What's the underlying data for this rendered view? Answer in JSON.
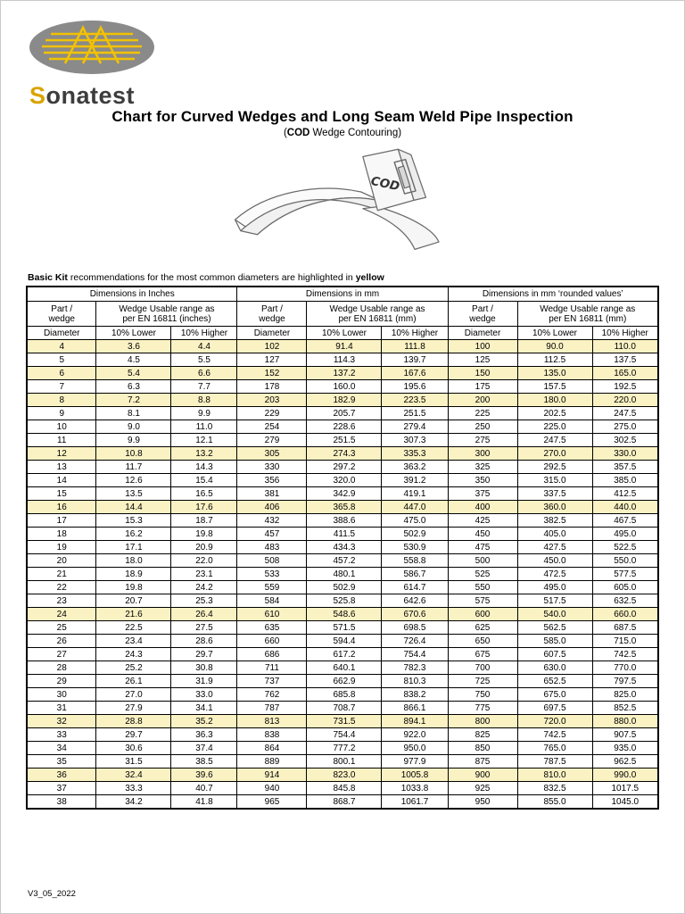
{
  "logo": {
    "brand_initial": "S",
    "brand_rest": "onatest"
  },
  "header": {
    "title": "Chart for Curved Wedges and Long Seam Weld Pipe Inspection",
    "subtitle_open": "(",
    "subtitle_bold": "COD",
    "subtitle_rest": " Wedge Contouring)"
  },
  "illustration": {
    "label": "COD"
  },
  "note": {
    "bold1": "Basic Kit",
    "text1": " recommendations for the most common diameters are highlighted in ",
    "bold2": "yellow"
  },
  "table": {
    "highlight_color": "#fbf2c4",
    "groups": [
      {
        "title": "Dimensions in Inches",
        "range_label": "Wedge Usable range as\nper EN 16811 (inches)"
      },
      {
        "title": "Dimensions in mm",
        "range_label": "Wedge Usable range as\nper EN 16811 (mm)"
      },
      {
        "title": "Dimensions in mm ‘rounded values’",
        "range_label": "Wedge Usable range as\nper EN 16811 (mm)"
      }
    ],
    "part_wedge_label": "Part /\nwedge",
    "diameter_label": "Diameter",
    "lower_label": "10% Lower",
    "higher_label": "10% Higher",
    "rows": [
      {
        "h": true,
        "v": [
          "4",
          "3.6",
          "4.4",
          "102",
          "91.4",
          "111.8",
          "100",
          "90.0",
          "110.0"
        ]
      },
      {
        "h": false,
        "v": [
          "5",
          "4.5",
          "5.5",
          "127",
          "114.3",
          "139.7",
          "125",
          "112.5",
          "137.5"
        ]
      },
      {
        "h": true,
        "v": [
          "6",
          "5.4",
          "6.6",
          "152",
          "137.2",
          "167.6",
          "150",
          "135.0",
          "165.0"
        ]
      },
      {
        "h": false,
        "v": [
          "7",
          "6.3",
          "7.7",
          "178",
          "160.0",
          "195.6",
          "175",
          "157.5",
          "192.5"
        ]
      },
      {
        "h": true,
        "v": [
          "8",
          "7.2",
          "8.8",
          "203",
          "182.9",
          "223.5",
          "200",
          "180.0",
          "220.0"
        ]
      },
      {
        "h": false,
        "v": [
          "9",
          "8.1",
          "9.9",
          "229",
          "205.7",
          "251.5",
          "225",
          "202.5",
          "247.5"
        ]
      },
      {
        "h": false,
        "v": [
          "10",
          "9.0",
          "11.0",
          "254",
          "228.6",
          "279.4",
          "250",
          "225.0",
          "275.0"
        ]
      },
      {
        "h": false,
        "v": [
          "11",
          "9.9",
          "12.1",
          "279",
          "251.5",
          "307.3",
          "275",
          "247.5",
          "302.5"
        ]
      },
      {
        "h": true,
        "v": [
          "12",
          "10.8",
          "13.2",
          "305",
          "274.3",
          "335.3",
          "300",
          "270.0",
          "330.0"
        ]
      },
      {
        "h": false,
        "v": [
          "13",
          "11.7",
          "14.3",
          "330",
          "297.2",
          "363.2",
          "325",
          "292.5",
          "357.5"
        ]
      },
      {
        "h": false,
        "v": [
          "14",
          "12.6",
          "15.4",
          "356",
          "320.0",
          "391.2",
          "350",
          "315.0",
          "385.0"
        ]
      },
      {
        "h": false,
        "v": [
          "15",
          "13.5",
          "16.5",
          "381",
          "342.9",
          "419.1",
          "375",
          "337.5",
          "412.5"
        ]
      },
      {
        "h": true,
        "v": [
          "16",
          "14.4",
          "17.6",
          "406",
          "365.8",
          "447.0",
          "400",
          "360.0",
          "440.0"
        ]
      },
      {
        "h": false,
        "v": [
          "17",
          "15.3",
          "18.7",
          "432",
          "388.6",
          "475.0",
          "425",
          "382.5",
          "467.5"
        ]
      },
      {
        "h": false,
        "v": [
          "18",
          "16.2",
          "19.8",
          "457",
          "411.5",
          "502.9",
          "450",
          "405.0",
          "495.0"
        ]
      },
      {
        "h": false,
        "v": [
          "19",
          "17.1",
          "20.9",
          "483",
          "434.3",
          "530.9",
          "475",
          "427.5",
          "522.5"
        ]
      },
      {
        "h": false,
        "v": [
          "20",
          "18.0",
          "22.0",
          "508",
          "457.2",
          "558.8",
          "500",
          "450.0",
          "550.0"
        ]
      },
      {
        "h": false,
        "v": [
          "21",
          "18.9",
          "23.1",
          "533",
          "480.1",
          "586.7",
          "525",
          "472.5",
          "577.5"
        ]
      },
      {
        "h": false,
        "v": [
          "22",
          "19.8",
          "24.2",
          "559",
          "502.9",
          "614.7",
          "550",
          "495.0",
          "605.0"
        ]
      },
      {
        "h": false,
        "v": [
          "23",
          "20.7",
          "25.3",
          "584",
          "525.8",
          "642.6",
          "575",
          "517.5",
          "632.5"
        ]
      },
      {
        "h": true,
        "v": [
          "24",
          "21.6",
          "26.4",
          "610",
          "548.6",
          "670.6",
          "600",
          "540.0",
          "660.0"
        ]
      },
      {
        "h": false,
        "v": [
          "25",
          "22.5",
          "27.5",
          "635",
          "571.5",
          "698.5",
          "625",
          "562.5",
          "687.5"
        ]
      },
      {
        "h": false,
        "v": [
          "26",
          "23.4",
          "28.6",
          "660",
          "594.4",
          "726.4",
          "650",
          "585.0",
          "715.0"
        ]
      },
      {
        "h": false,
        "v": [
          "27",
          "24.3",
          "29.7",
          "686",
          "617.2",
          "754.4",
          "675",
          "607.5",
          "742.5"
        ]
      },
      {
        "h": false,
        "v": [
          "28",
          "25.2",
          "30.8",
          "711",
          "640.1",
          "782.3",
          "700",
          "630.0",
          "770.0"
        ]
      },
      {
        "h": false,
        "v": [
          "29",
          "26.1",
          "31.9",
          "737",
          "662.9",
          "810.3",
          "725",
          "652.5",
          "797.5"
        ]
      },
      {
        "h": false,
        "v": [
          "30",
          "27.0",
          "33.0",
          "762",
          "685.8",
          "838.2",
          "750",
          "675.0",
          "825.0"
        ]
      },
      {
        "h": false,
        "v": [
          "31",
          "27.9",
          "34.1",
          "787",
          "708.7",
          "866.1",
          "775",
          "697.5",
          "852.5"
        ]
      },
      {
        "h": true,
        "v": [
          "32",
          "28.8",
          "35.2",
          "813",
          "731.5",
          "894.1",
          "800",
          "720.0",
          "880.0"
        ]
      },
      {
        "h": false,
        "v": [
          "33",
          "29.7",
          "36.3",
          "838",
          "754.4",
          "922.0",
          "825",
          "742.5",
          "907.5"
        ]
      },
      {
        "h": false,
        "v": [
          "34",
          "30.6",
          "37.4",
          "864",
          "777.2",
          "950.0",
          "850",
          "765.0",
          "935.0"
        ]
      },
      {
        "h": false,
        "v": [
          "35",
          "31.5",
          "38.5",
          "889",
          "800.1",
          "977.9",
          "875",
          "787.5",
          "962.5"
        ]
      },
      {
        "h": true,
        "v": [
          "36",
          "32.4",
          "39.6",
          "914",
          "823.0",
          "1005.8",
          "900",
          "810.0",
          "990.0"
        ]
      },
      {
        "h": false,
        "v": [
          "37",
          "33.3",
          "40.7",
          "940",
          "845.8",
          "1033.8",
          "925",
          "832.5",
          "1017.5"
        ]
      },
      {
        "h": false,
        "v": [
          "38",
          "34.2",
          "41.8",
          "965",
          "868.7",
          "1061.7",
          "950",
          "855.0",
          "1045.0"
        ]
      }
    ]
  },
  "footer": {
    "version": "V3_05_2022"
  }
}
